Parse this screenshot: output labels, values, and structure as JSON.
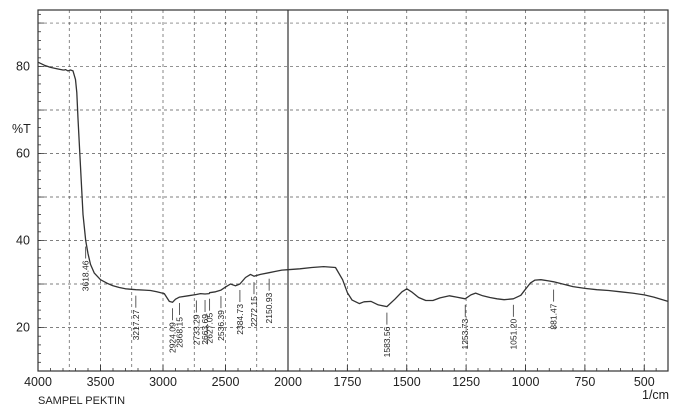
{
  "chart_data": {
    "type": "line",
    "title": "",
    "xlabel": "1/cm",
    "ylabel": "%T",
    "sample_label": "SAMPEL PEKTIN",
    "x_reversed": true,
    "xlim": [
      4000,
      400
    ],
    "ylim": [
      10,
      93
    ],
    "x_ticks": [
      4000,
      3500,
      3000,
      2500,
      2000,
      1750,
      1500,
      1250,
      1000,
      750,
      500
    ],
    "x_tick_labels": [
      "4000",
      "3500",
      "3000",
      "2500",
      "2000",
      "1750",
      "1500",
      "1250",
      "1000",
      "750",
      "500"
    ],
    "y_ticks": [
      20,
      40,
      60,
      80
    ],
    "y_tick_labels": [
      "20",
      "40",
      "60",
      "80"
    ],
    "grid": true,
    "line_color": "#333333",
    "series": [
      {
        "x": [
          4000,
          3950,
          3900,
          3850,
          3800,
          3790,
          3780,
          3760,
          3740,
          3720,
          3700,
          3690,
          3680,
          3660,
          3640,
          3618.46,
          3600,
          3580,
          3550,
          3500,
          3450,
          3400,
          3350,
          3300,
          3217.27,
          3150,
          3100,
          3050,
          2990,
          2950,
          2924.09,
          2900,
          2868.15,
          2800,
          2733.29,
          2700,
          2663.69,
          2630,
          2627.05,
          2580,
          2536.39,
          2500,
          2460,
          2420,
          2384.73,
          2340,
          2300,
          2272.15,
          2220,
          2150.93,
          2100,
          2050,
          2000,
          1950,
          1900,
          1850,
          1800,
          1770,
          1750,
          1730,
          1700,
          1680,
          1650,
          1620,
          1583.56,
          1550,
          1520,
          1500,
          1480,
          1450,
          1420,
          1390,
          1360,
          1320,
          1290,
          1253.73,
          1230,
          1210,
          1180,
          1150,
          1120,
          1090,
          1051.2,
          1020,
          1000,
          980,
          960,
          935,
          900,
          881.47,
          850,
          800,
          750,
          700,
          650,
          600,
          550,
          500,
          460,
          430,
          400
        ],
        "y": [
          81,
          80.3,
          79.8,
          79.5,
          79.2,
          79.2,
          79.3,
          79,
          79.2,
          79,
          77,
          74,
          68,
          57,
          46,
          40,
          37,
          34.5,
          32.5,
          31,
          30.2,
          29.6,
          29.2,
          28.9,
          28.7,
          28.6,
          28.5,
          28.2,
          27.8,
          26,
          25.8,
          26.5,
          27,
          27.3,
          27.6,
          27.8,
          27.7,
          27.8,
          28,
          28.2,
          28.6,
          29.3,
          30,
          29.6,
          30,
          31.5,
          32.2,
          31.8,
          32.2,
          32.6,
          32.9,
          33.2,
          33.3,
          33.5,
          33.8,
          34,
          33.8,
          31,
          28,
          26.3,
          25.5,
          25.9,
          26,
          25.2,
          24.8,
          26.5,
          28.2,
          28.9,
          28.2,
          26.9,
          26.2,
          26.2,
          26.8,
          27.3,
          27,
          26.6,
          27.5,
          27.9,
          27.3,
          26.9,
          26.6,
          26.4,
          26.6,
          27.4,
          28.8,
          30.2,
          30.9,
          31,
          30.7,
          30.5,
          30.1,
          29.4,
          29,
          28.7,
          28.5,
          28.2,
          27.9,
          27.5,
          27,
          26.5,
          26
        ]
      }
    ],
    "peak_labels": [
      {
        "text": "3618.46",
        "x": 3618.46,
        "y": 40
      },
      {
        "text": "3217.27",
        "x": 3217.27,
        "y": 28.7
      },
      {
        "text": "2924.09",
        "x": 2924.09,
        "y": 25.8
      },
      {
        "text": "2868.15",
        "x": 2868.15,
        "y": 27
      },
      {
        "text": "2733.29",
        "x": 2733.29,
        "y": 27.6
      },
      {
        "text": "2663.69",
        "x": 2663.69,
        "y": 27.7
      },
      {
        "text": "2627.05",
        "x": 2627.05,
        "y": 28
      },
      {
        "text": "2536.39",
        "x": 2536.39,
        "y": 28.6
      },
      {
        "text": "2384.73",
        "x": 2384.73,
        "y": 30
      },
      {
        "text": "2272.15",
        "x": 2272.15,
        "y": 31.8
      },
      {
        "text": "2150.93",
        "x": 2150.93,
        "y": 32.6
      },
      {
        "text": "1583.56",
        "x": 1583.56,
        "y": 24.8
      },
      {
        "text": "1253.73",
        "x": 1253.73,
        "y": 26.6
      },
      {
        "text": "1051.20",
        "x": 1051.2,
        "y": 26.6
      },
      {
        "text": "881.47",
        "x": 881.47,
        "y": 30.1
      }
    ]
  }
}
